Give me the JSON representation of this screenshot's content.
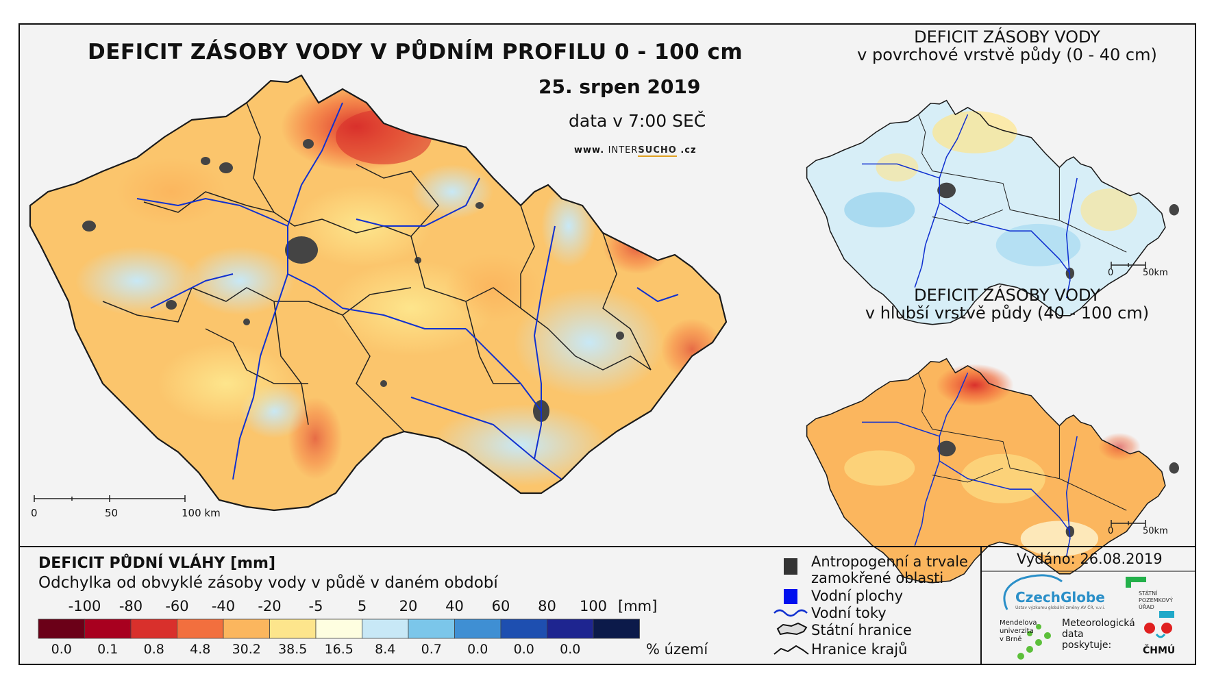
{
  "main": {
    "title": "DEFICIT ZÁSOBY VODY V PŮDNÍM PROFILU 0 - 100 cm",
    "date": "25. srpen 2019",
    "time_note": "data v 7:00 SEČ",
    "website": {
      "prefix": "www.",
      "name_a": "INTER",
      "name_b": "SUCHO",
      "suffix": ".cz"
    },
    "scale": {
      "l0": "0",
      "l1": "50",
      "l2": "100 km"
    }
  },
  "inset_top": {
    "title_line1": "DEFICIT ZÁSOBY VODY",
    "title_line2": "v povrchové vrstvě půdy (0 - 40 cm)",
    "scale": {
      "l0": "0",
      "l1": "50km"
    }
  },
  "inset_bottom": {
    "title_line1": "DEFICIT ZÁSOBY VODY",
    "title_line2": "v hlubší vrstvě půdy (40 - 100 cm)",
    "scale": {
      "l0": "0",
      "l1": "50km"
    }
  },
  "legend": {
    "heading": "DEFICIT PŮDNÍ VLÁHY [mm]",
    "subheading": "Odchylka od obvyklé zásoby vody v půdě v daném období",
    "unit": "[mm]",
    "pct_unit": "% území",
    "thresholds": [
      "-100",
      "-80",
      "-60",
      "-40",
      "-20",
      "-5",
      "5",
      "20",
      "40",
      "60",
      "80",
      "100"
    ],
    "classes": [
      {
        "color": "#6b0018",
        "pct": "0.0"
      },
      {
        "color": "#a8001f",
        "pct": "0.1"
      },
      {
        "color": "#d9302c",
        "pct": "0.8"
      },
      {
        "color": "#f26f3e",
        "pct": "4.8"
      },
      {
        "color": "#fbb65e",
        "pct": "30.2"
      },
      {
        "color": "#fde58c",
        "pct": "38.5"
      },
      {
        "color": "#fefee0",
        "pct": "16.5"
      },
      {
        "color": "#c8e8f6",
        "pct": "8.4"
      },
      {
        "color": "#7bc6ea",
        "pct": "0.7"
      },
      {
        "color": "#3f8fd3",
        "pct": "0.0"
      },
      {
        "color": "#1e4fb0",
        "pct": "0.0"
      },
      {
        "color": "#1e2590",
        "pct": "0.0"
      },
      {
        "color": "#0c1a4a",
        "pct": ""
      }
    ]
  },
  "symbols": {
    "urban_line1": "Antropogenní a trvale",
    "urban_line2": "zamokřené oblasti",
    "water": "Vodní plochy",
    "rivers": "Vodní toky",
    "border": "Státní hranice",
    "regions": "Hranice krajů"
  },
  "issued": "Vydáno: 26.08.2019",
  "logos": {
    "czechglobe": "CzechGlobe",
    "czechglobe_sub": "Ústav výzkumu globální změny AV ČR, v.v.i.",
    "spu_line1": "STÁTNÍ",
    "spu_line2": "POZEMKOVÝ",
    "spu_line3": "ÚŘAD",
    "mendel_line1": "Mendelova",
    "mendel_line2": "univerzita",
    "mendel_line3": "v Brně",
    "meteo_line1": "Meteorologická",
    "meteo_line2": "data",
    "meteo_line3": "poskytuje:",
    "chmu": "ČHMÚ"
  }
}
